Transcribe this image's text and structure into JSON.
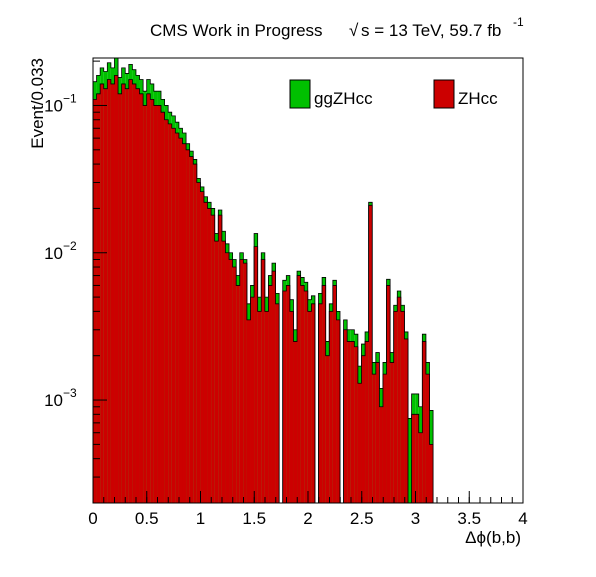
{
  "header": {
    "title": "CMS Work in Progress",
    "sqrt_symbol": "√",
    "energy": "s = 13 TeV, 59.7 fb",
    "lumi_exponent": "-1"
  },
  "chart_data": {
    "type": "bar",
    "stacked": true,
    "title": "CMS Work in Progress",
    "xlabel": "Δϕ(b,b)",
    "ylabel": "Event/0.033",
    "x_scale": "linear",
    "y_scale": "log",
    "xlim": [
      0,
      4
    ],
    "ylim": [
      0.0002,
      0.21
    ],
    "bin_width": 0.0333,
    "x_ticks": [
      "0",
      "0.5",
      "1",
      "1.5",
      "2",
      "2.5",
      "3",
      "3.5",
      "4"
    ],
    "y_ticks": [
      {
        "value": 0.1,
        "base": "10",
        "exp": "−1"
      },
      {
        "value": 0.01,
        "base": "10",
        "exp": "−2"
      },
      {
        "value": 0.001,
        "base": "10",
        "exp": "−3"
      }
    ],
    "legend_position": "top",
    "colors": {
      "ggZHcc": "#00c000",
      "ZHcc": "#cc0000"
    },
    "series": [
      {
        "name": "ZHcc",
        "color": "#cc0000",
        "values": [
          0.11,
          0.12,
          0.14,
          0.13,
          0.15,
          0.14,
          0.16,
          0.12,
          0.14,
          0.13,
          0.15,
          0.14,
          0.13,
          0.12,
          0.1,
          0.12,
          0.11,
          0.1,
          0.1,
          0.09,
          0.08,
          0.075,
          0.07,
          0.065,
          0.06,
          0.055,
          0.05,
          0.045,
          0.04,
          0.03,
          0.026,
          0.022,
          0.02,
          0.018,
          0.012,
          0.018,
          0.012,
          0.01,
          0.009,
          0.008,
          0.006,
          0.009,
          0.0085,
          0.0035,
          0.005,
          0.011,
          0.004,
          0.009,
          0.004,
          0.006,
          0.0075,
          0.0045,
          0.0002,
          0.0055,
          0.006,
          0.004,
          0.0025,
          0.007,
          0.006,
          0.0055,
          0.004,
          0.0045,
          0.0002,
          0.0045,
          0.006,
          0.002,
          0.004,
          0.006,
          0.0035,
          0.0002,
          0.003,
          0.0025,
          0.0025,
          0.0023,
          0.0013,
          0.002,
          0.0025,
          0.021,
          0.0015,
          0.0018,
          0.0009,
          0.0015,
          0.006,
          0.0018,
          0.004,
          0.005,
          0.004,
          0.0026,
          0.0002,
          0.0008,
          0.0008,
          0.0006,
          0.0025,
          0.0015,
          0.0005,
          0.0002,
          0.0002,
          0.0002,
          0.0002,
          0.0002,
          0.0002,
          0.0002,
          0.0002,
          0.0002,
          0.0002,
          0.0002,
          0.0002,
          0.0002,
          0.0002,
          0.0002
        ]
      },
      {
        "name": "ggZHcc",
        "color": "#00c000",
        "values": [
          0.035,
          0.04,
          0.04,
          0.04,
          0.045,
          0.04,
          0.05,
          0.035,
          0.04,
          0.035,
          0.04,
          0.035,
          0.03,
          0.03,
          0.025,
          0.03,
          0.03,
          0.025,
          0.025,
          0.02,
          0.02,
          0.015,
          0.015,
          0.012,
          0.01,
          0.01,
          0.005,
          0.004,
          0.003,
          0.002,
          0.002,
          0.002,
          0.002,
          0.002,
          0.0015,
          0.0015,
          0.002,
          0.0015,
          0.001,
          0.001,
          0.001,
          0.001,
          0.0005,
          0.001,
          0.001,
          0.0025,
          0.001,
          0.001,
          0.001,
          0.001,
          0.001,
          0.0008,
          0.0,
          0.001,
          0.001,
          0.0008,
          0.0005,
          0.0005,
          0.0008,
          0.0008,
          0.0008,
          0.0006,
          0.0,
          0.0008,
          0.0008,
          0.0005,
          0.0005,
          0.0005,
          0.0005,
          0.0,
          0.0005,
          0.0005,
          0.0005,
          0.0005,
          0.0004,
          0.0004,
          0.0004,
          0.001,
          0.0003,
          0.0003,
          0.0003,
          0.0003,
          0.0006,
          0.0003,
          0.0004,
          0.0005,
          0.0004,
          0.0003,
          0.00055,
          0.0003,
          0.0003,
          0.0003,
          0.0003,
          0.0003,
          0.00035,
          0.0,
          0.0,
          0.0,
          0.0,
          0.0,
          0.0,
          0.0,
          0.0,
          0.0,
          0.0,
          0.0,
          0.0,
          0.0,
          0.0,
          0.0
        ]
      }
    ]
  }
}
